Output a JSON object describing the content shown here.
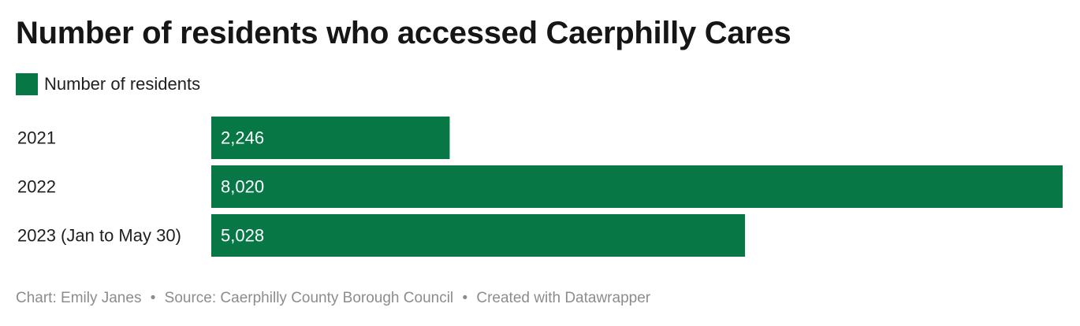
{
  "title": "Number of residents who accessed Caerphilly Cares",
  "legend": {
    "label": "Number of residents",
    "color": "#077845"
  },
  "chart_data": {
    "type": "bar",
    "orientation": "horizontal",
    "categories": [
      "2021",
      "2022",
      "2023 (Jan to May 30)"
    ],
    "series": [
      {
        "name": "Number of residents",
        "color": "#077845",
        "values": [
          2246,
          8020,
          5028
        ],
        "labels": [
          "2,246",
          "8,020",
          "5,028"
        ]
      }
    ],
    "xlim": [
      0,
      8020
    ],
    "grid": false,
    "legend_position": "top-left"
  },
  "footer": {
    "chart_credit": "Chart: Emily Janes",
    "separator": "•",
    "source": "Source: Caerphilly County Borough Council",
    "created_with": "Created with Datawrapper"
  }
}
